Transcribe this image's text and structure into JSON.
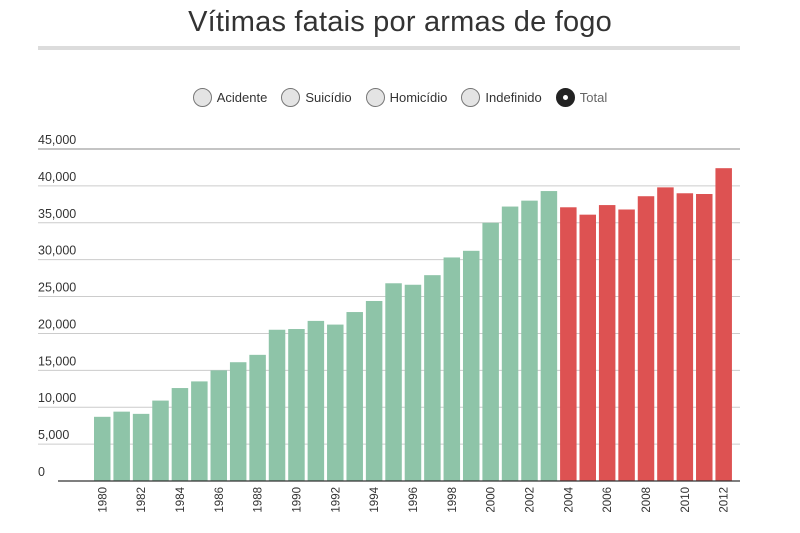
{
  "title": "Vítimas fatais por armas de fogo",
  "legend": {
    "options": [
      {
        "label": "Acidente",
        "selected": false
      },
      {
        "label": "Suicídio",
        "selected": false
      },
      {
        "label": "Homicídio",
        "selected": false
      },
      {
        "label": "Indefinido",
        "selected": false
      },
      {
        "label": "Total",
        "selected": true
      }
    ]
  },
  "colors": {
    "bar_before_2004": "#8ec4a8",
    "bar_from_2004": "#dd5252",
    "grid": "#cccccc",
    "axis": "#333333"
  },
  "chart_data": {
    "type": "bar",
    "title": "Vítimas fatais por armas de fogo",
    "categories": [
      "1980",
      "1981",
      "1982",
      "1983",
      "1984",
      "1985",
      "1986",
      "1987",
      "1988",
      "1989",
      "1990",
      "1991",
      "1992",
      "1993",
      "1994",
      "1995",
      "1996",
      "1997",
      "1998",
      "1999",
      "2000",
      "2001",
      "2002",
      "2003",
      "2004",
      "2005",
      "2006",
      "2007",
      "2008",
      "2009",
      "2010",
      "2011",
      "2012"
    ],
    "x_tick_labels": [
      "1980",
      "",
      "1982",
      "",
      "1984",
      "",
      "1986",
      "",
      "1988",
      "",
      "1990",
      "",
      "1992",
      "",
      "1994",
      "",
      "1996",
      "",
      "1998",
      "",
      "2000",
      "",
      "2002",
      "",
      "2004",
      "",
      "2006",
      "",
      "2008",
      "",
      "2010",
      "",
      "2012"
    ],
    "series": [
      {
        "values": [
          8700,
          9400,
          9100,
          10900,
          12600,
          13500,
          15000,
          16100,
          17100,
          20500,
          20600,
          21700,
          21200,
          22900,
          24400,
          26800,
          26600,
          27900,
          30300,
          31200,
          35000,
          37200,
          38000,
          39300,
          37100,
          36100,
          37400,
          36800,
          38600,
          39800,
          39000,
          38900,
          42400
        ]
      }
    ],
    "y_ticks": [
      0,
      5000,
      10000,
      15000,
      20000,
      25000,
      30000,
      35000,
      40000,
      45000
    ],
    "y_tick_labels": [
      "0",
      "5,000",
      "10,000",
      "15,000",
      "20,000",
      "25,000",
      "30,000",
      "35,000",
      "40,000",
      "45,000"
    ],
    "ylim": [
      0,
      45000
    ],
    "grid": true,
    "color_change_year": "2004"
  }
}
